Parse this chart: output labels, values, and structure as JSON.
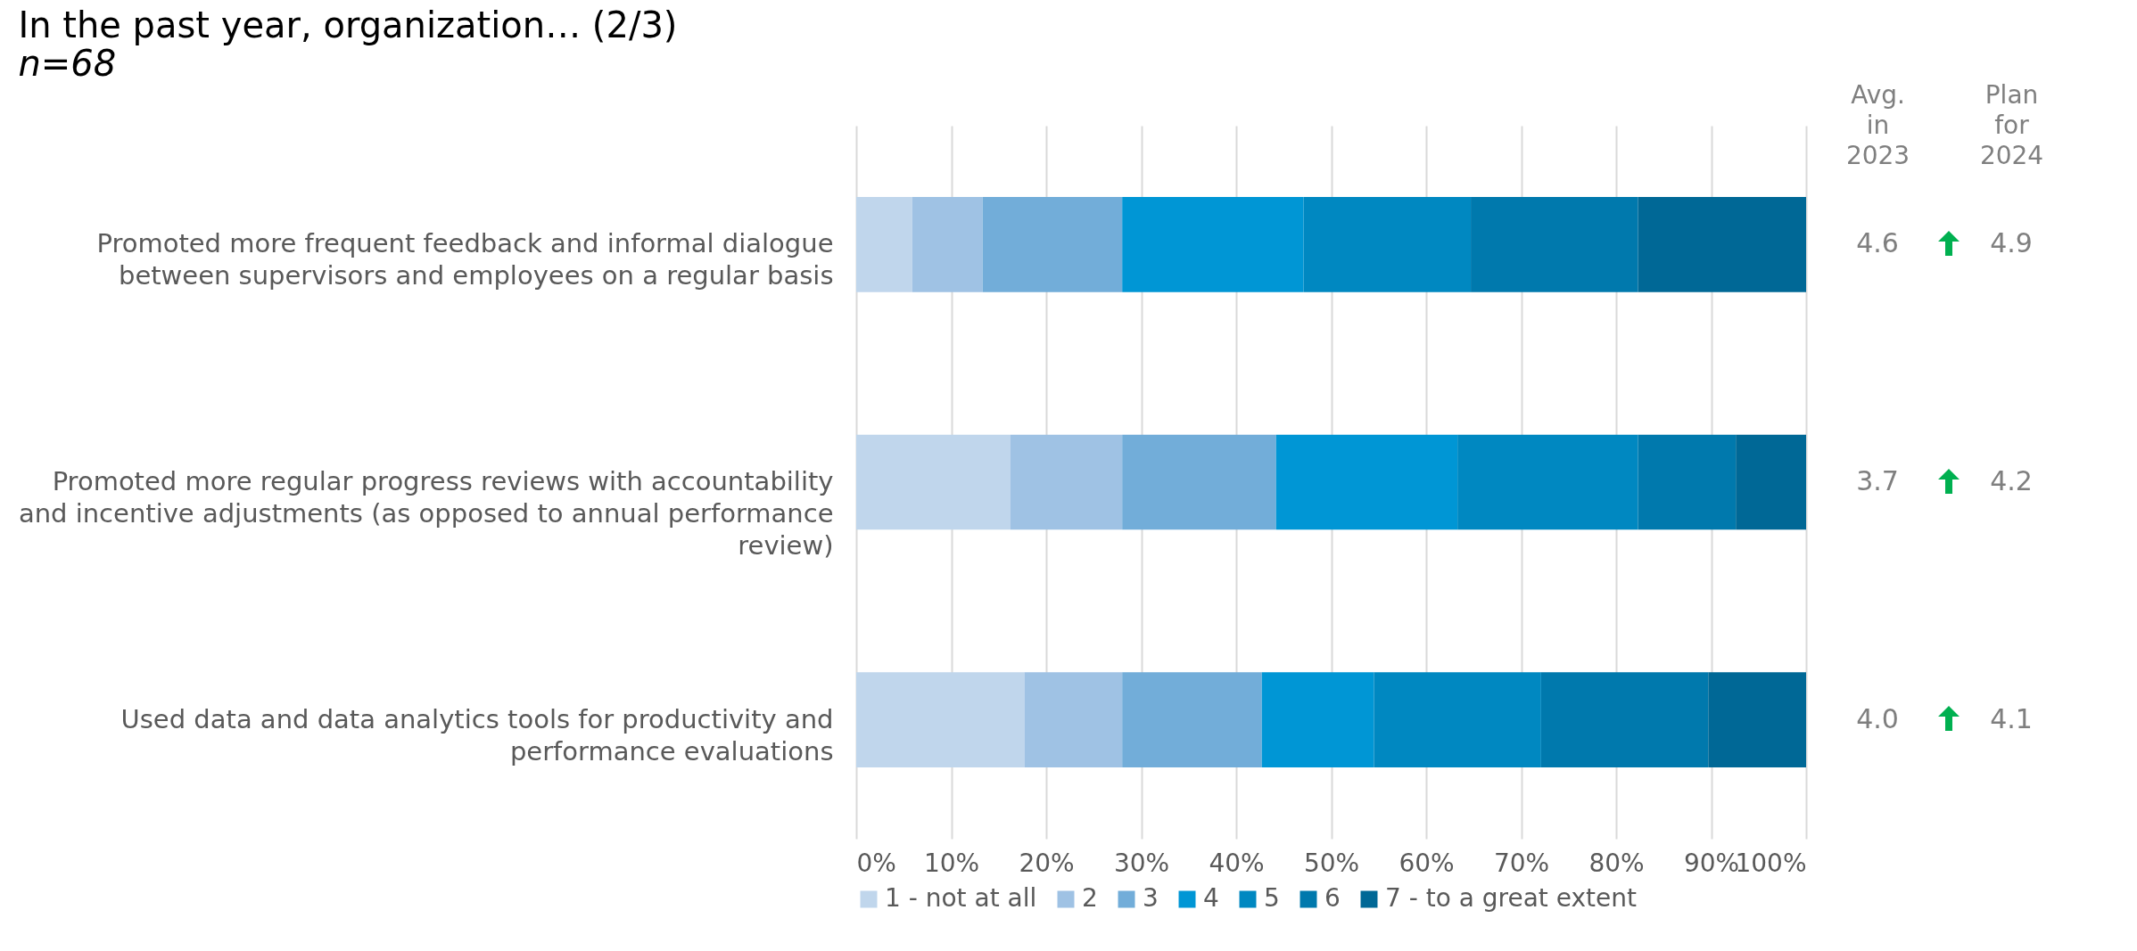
{
  "chart_data": [
    {
      "type": "bar",
      "orientation": "horizontal",
      "stacked": true,
      "title": "In the past year, organization… (2/3)",
      "subtitle": "n=68",
      "categories": [
        "Promoted more frequent feedback and informal dialogue between supervisors and employees on a regular basis",
        "Promoted more regular progress reviews with accountability and incentive adjustments (as opposed to annual performance review)",
        "Used data and data analytics tools for productivity and performance evaluations"
      ],
      "series": [
        {
          "name": "1 - not at all",
          "color": "#c0d6ec",
          "values": [
            5.9,
            16.2,
            17.7
          ]
        },
        {
          "name": "2",
          "color": "#9fc2e4",
          "values": [
            7.4,
            11.8,
            10.3
          ]
        },
        {
          "name": "3",
          "color": "#72add9",
          "values": [
            14.7,
            16.2,
            14.7
          ]
        },
        {
          "name": "4",
          "color": "#0096d5",
          "values": [
            19.1,
            19.1,
            11.8
          ]
        },
        {
          "name": "5",
          "color": "#0088c1",
          "values": [
            17.6,
            19.0,
            17.6
          ]
        },
        {
          "name": "6",
          "color": "#0079ad",
          "values": [
            17.6,
            10.3,
            17.6
          ]
        },
        {
          "name": "7 - to a great extent",
          "color": "#006896",
          "values": [
            17.7,
            7.4,
            10.3
          ]
        }
      ],
      "xlim": [
        0,
        100
      ],
      "xticks": [
        {
          "value": 0,
          "label": "0%"
        },
        {
          "value": 10,
          "label": "10%"
        },
        {
          "value": 20,
          "label": "20%"
        },
        {
          "value": 30,
          "label": "30%"
        },
        {
          "value": 40,
          "label": "40%"
        },
        {
          "value": 50,
          "label": "50%"
        },
        {
          "value": 60,
          "label": "60%"
        },
        {
          "value": 70,
          "label": "70%"
        },
        {
          "value": 80,
          "label": "80%"
        },
        {
          "value": 90,
          "label": "90%"
        },
        {
          "value": 100,
          "label": "100%"
        }
      ],
      "grid": "x",
      "legend": "bottom"
    },
    {
      "type": "other",
      "categories": [
        "Avg. in 2023",
        "Plan for 2024"
      ],
      "annotations": [
        "4.6",
        "4.9",
        "3.7",
        "4.2",
        "4.0",
        "4.1"
      ]
    }
  ]
}
